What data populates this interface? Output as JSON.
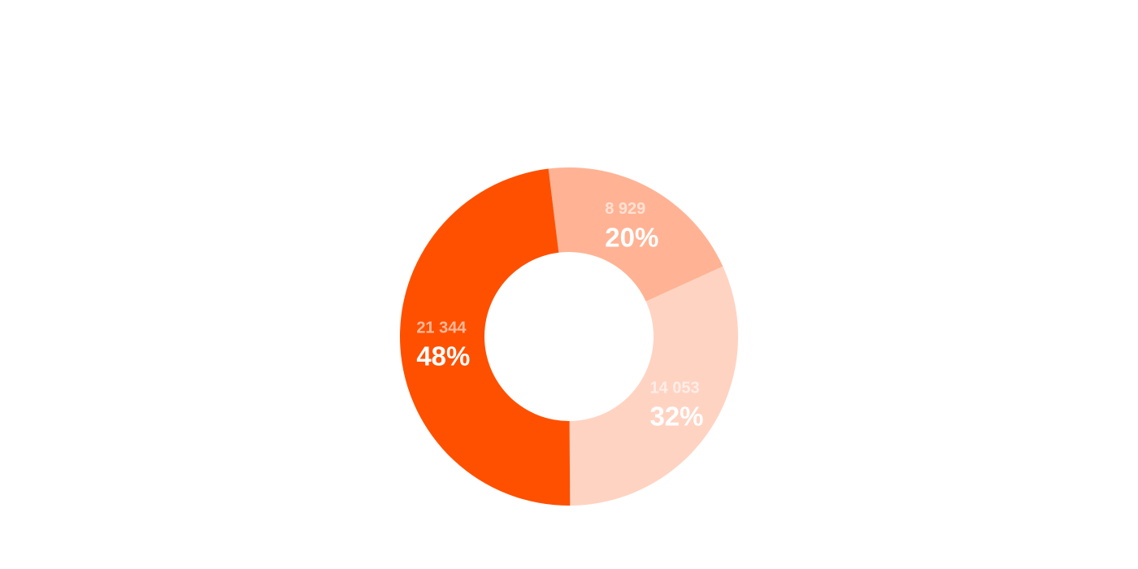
{
  "chart_data": {
    "type": "donut",
    "categories": [
      null,
      null,
      null
    ],
    "values": [
      8929,
      14053,
      21344
    ],
    "value_labels": [
      "8 929",
      "14 053",
      "21 344"
    ],
    "percentages": [
      20,
      32,
      48
    ],
    "percent_labels": [
      "20%",
      "32%",
      "48%"
    ],
    "colors": [
      "#ffb394",
      "#ffd3c2",
      "#ff5000"
    ]
  }
}
